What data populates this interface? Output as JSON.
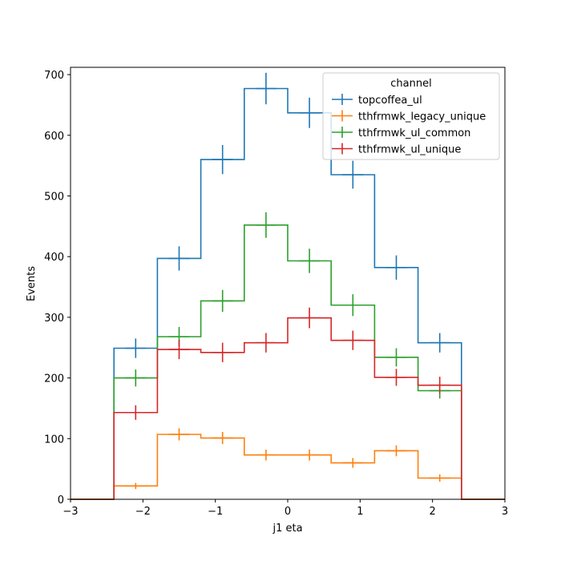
{
  "chart_data": {
    "type": "line",
    "title": "",
    "xlabel": "j1 eta",
    "ylabel": "Events",
    "xlim": [
      -3,
      3
    ],
    "ylim": [
      0,
      712
    ],
    "xticks": [
      "−3",
      "−2",
      "−1",
      "0",
      "1",
      "2",
      "3"
    ],
    "yticks": [
      "0",
      "100",
      "200",
      "300",
      "400",
      "500",
      "600",
      "700"
    ],
    "bin_edges": [
      -3,
      -2.4,
      -1.8,
      -1.2,
      -0.6,
      0,
      0.6,
      1.2,
      1.8,
      2.4,
      3
    ],
    "grid": false,
    "legend": {
      "title": "channel",
      "position": "top-right"
    },
    "series": [
      {
        "name": "topcoffea_ul",
        "color": "#1f77b4",
        "values": [
          0,
          249,
          397,
          560,
          677,
          637,
          535,
          382,
          258,
          0
        ],
        "errors": [
          0,
          16,
          20,
          24,
          26,
          25,
          23,
          20,
          16,
          0
        ]
      },
      {
        "name": "tthfrmwk_legacy_unique",
        "color": "#ff7f0e",
        "values": [
          0,
          22,
          107,
          101,
          73,
          73,
          60,
          80,
          35,
          0
        ],
        "errors": [
          0,
          5,
          10,
          10,
          9,
          9,
          8,
          9,
          6,
          0
        ]
      },
      {
        "name": "tthfrmwk_ul_common",
        "color": "#2ca02c",
        "values": [
          0,
          200,
          268,
          327,
          452,
          393,
          320,
          234,
          179,
          0
        ],
        "errors": [
          0,
          14,
          16,
          18,
          21,
          20,
          18,
          15,
          13,
          0
        ]
      },
      {
        "name": "tthfrmwk_ul_unique",
        "color": "#d62728",
        "values": [
          0,
          143,
          247,
          242,
          258,
          299,
          262,
          201,
          188,
          0
        ],
        "errors": [
          0,
          12,
          16,
          16,
          16,
          17,
          16,
          14,
          14,
          0
        ]
      }
    ]
  }
}
